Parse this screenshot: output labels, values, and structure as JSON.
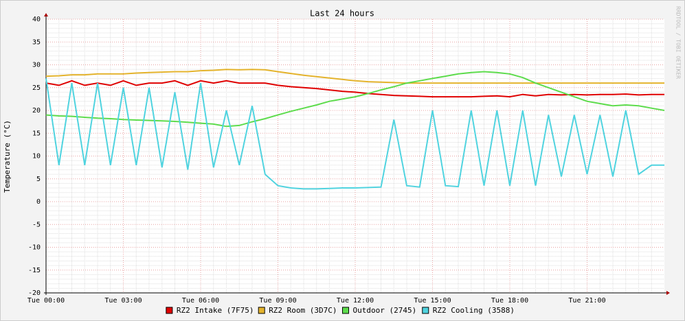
{
  "chart_data": {
    "type": "line",
    "title": "Last 24 hours",
    "y_label": "Temperature (°C)",
    "watermark": "RRDTOOL / TOBI OETIKER",
    "x": [
      0,
      0.5,
      1,
      1.5,
      2,
      2.5,
      3,
      3.5,
      4,
      4.5,
      5,
      5.5,
      6,
      6.5,
      7,
      7.5,
      8,
      8.5,
      9,
      9.5,
      10,
      10.5,
      11,
      11.5,
      12,
      12.5,
      13,
      13.5,
      14,
      14.5,
      15,
      15.5,
      16,
      16.5,
      17,
      17.5,
      18,
      18.5,
      19,
      19.5,
      20,
      20.5,
      21,
      21.5,
      22,
      22.5,
      23,
      23.5,
      24
    ],
    "xlim": [
      0,
      24
    ],
    "xticks": [
      {
        "value": 0,
        "label": "Tue 00:00"
      },
      {
        "value": 3,
        "label": "Tue 03:00"
      },
      {
        "value": 6,
        "label": "Tue 06:00"
      },
      {
        "value": 9,
        "label": "Tue 09:00"
      },
      {
        "value": 12,
        "label": "Tue 12:00"
      },
      {
        "value": 15,
        "label": "Tue 15:00"
      },
      {
        "value": 18,
        "label": "Tue 18:00"
      },
      {
        "value": 21,
        "label": "Tue 21:00"
      }
    ],
    "ylim": [
      -20,
      40
    ],
    "yticks": [
      -20,
      -15,
      -10,
      -5,
      0,
      5,
      10,
      15,
      20,
      25,
      30,
      35,
      40
    ],
    "grid": true,
    "legend": "bottom",
    "series": [
      {
        "name": "RZ2 Intake (7F75)",
        "color": "#e00000",
        "values": [
          26,
          25.5,
          26.5,
          25.5,
          26,
          25.5,
          26.5,
          25.5,
          26,
          26,
          26.5,
          25.5,
          26.5,
          26,
          26.5,
          26,
          26,
          26,
          25.5,
          25.2,
          25,
          24.8,
          24.5,
          24.2,
          24,
          23.7,
          23.5,
          23.3,
          23.2,
          23.1,
          23,
          23,
          23,
          23,
          23.1,
          23.2,
          23,
          23.5,
          23.2,
          23.5,
          23.4,
          23.5,
          23.4,
          23.5,
          23.5,
          23.6,
          23.4,
          23.5,
          23.5
        ]
      },
      {
        "name": "RZ2 Room (3D7C)",
        "color": "#e4b32c",
        "values": [
          27.5,
          27.6,
          27.8,
          27.8,
          28,
          28,
          28,
          28.2,
          28.3,
          28.4,
          28.5,
          28.5,
          28.7,
          28.8,
          29,
          28.9,
          29,
          28.9,
          28.5,
          28.1,
          27.7,
          27.4,
          27.1,
          26.8,
          26.5,
          26.3,
          26.2,
          26.1,
          26,
          26,
          26,
          26,
          26,
          26,
          26,
          26,
          26,
          26,
          26,
          26,
          26,
          26,
          26,
          26,
          26,
          26,
          26,
          26,
          26
        ]
      },
      {
        "name": "Outdoor (2745)",
        "color": "#5ddc4c",
        "values": [
          19,
          18.8,
          18.7,
          18.5,
          18.3,
          18.2,
          18,
          17.9,
          17.8,
          17.7,
          17.6,
          17.4,
          17.2,
          17,
          16.5,
          16.7,
          17.5,
          18.2,
          19,
          19.8,
          20.5,
          21.2,
          22,
          22.5,
          23,
          23.7,
          24.5,
          25.2,
          26,
          26.5,
          27,
          27.5,
          28,
          28.3,
          28.5,
          28.3,
          28,
          27.2,
          26,
          25,
          24,
          23,
          22,
          21.5,
          21,
          21.2,
          21,
          20.5,
          20
        ]
      },
      {
        "name": "RZ2 Cooling (3588)",
        "color": "#4fd3df",
        "values": [
          27,
          8,
          26,
          8,
          26,
          8,
          25,
          8,
          25,
          7.5,
          24,
          7,
          26,
          7.5,
          20,
          8,
          21,
          6,
          3.5,
          3,
          2.8,
          2.8,
          2.9,
          3,
          3,
          3.1,
          3.2,
          18,
          3.5,
          3.2,
          20,
          3.5,
          3.3,
          20,
          3.5,
          20,
          3.5,
          20,
          3.5,
          19,
          5.5,
          19,
          6,
          19,
          5.5,
          20,
          6,
          8,
          8
        ]
      }
    ]
  }
}
